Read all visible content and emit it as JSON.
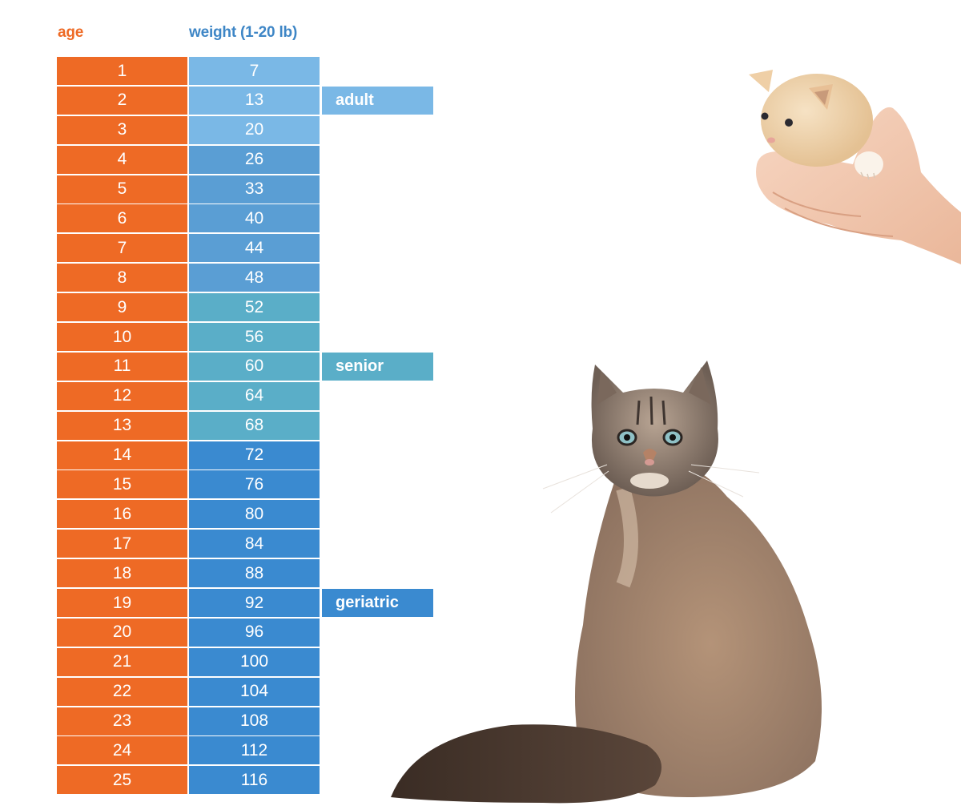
{
  "headers": {
    "age": "age",
    "weight": "weight (1-20 lb)"
  },
  "colors": {
    "age": "#ee6a25",
    "header_weight": "#3e86c6",
    "kitten": "#7ab8e6",
    "adult": "#5a9ed4",
    "senior": "#5aaec8",
    "geriatric": "#3a8ad0"
  },
  "stages": [
    {
      "label": "adult",
      "row": 2,
      "group": "kitten"
    },
    {
      "label": "senior",
      "row": 11,
      "group": "senior"
    },
    {
      "label": "geriatric",
      "row": 19,
      "group": "geriatric"
    }
  ],
  "rows": [
    {
      "age": "1",
      "weight": "7",
      "group": "kitten"
    },
    {
      "age": "2",
      "weight": "13",
      "group": "kitten"
    },
    {
      "age": "3",
      "weight": "20",
      "group": "kitten"
    },
    {
      "age": "4",
      "weight": "26",
      "group": "adult"
    },
    {
      "age": "5",
      "weight": "33",
      "group": "adult"
    },
    {
      "age": "6",
      "weight": "40",
      "group": "adult"
    },
    {
      "age": "7",
      "weight": "44",
      "group": "adult"
    },
    {
      "age": "8",
      "weight": "48",
      "group": "adult"
    },
    {
      "age": "9",
      "weight": "52",
      "group": "senior"
    },
    {
      "age": "10",
      "weight": "56",
      "group": "senior"
    },
    {
      "age": "11",
      "weight": "60",
      "group": "senior"
    },
    {
      "age": "12",
      "weight": "64",
      "group": "senior"
    },
    {
      "age": "13",
      "weight": "68",
      "group": "senior"
    },
    {
      "age": "14",
      "weight": "72",
      "group": "geriatric"
    },
    {
      "age": "15",
      "weight": "76",
      "group": "geriatric"
    },
    {
      "age": "16",
      "weight": "80",
      "group": "geriatric"
    },
    {
      "age": "17",
      "weight": "84",
      "group": "geriatric"
    },
    {
      "age": "18",
      "weight": "88",
      "group": "geriatric"
    },
    {
      "age": "19",
      "weight": "92",
      "group": "geriatric"
    },
    {
      "age": "20",
      "weight": "96",
      "group": "geriatric"
    },
    {
      "age": "21",
      "weight": "100",
      "group": "geriatric"
    },
    {
      "age": "22",
      "weight": "104",
      "group": "geriatric"
    },
    {
      "age": "23",
      "weight": "108",
      "group": "geriatric"
    },
    {
      "age": "24",
      "weight": "112",
      "group": "geriatric"
    },
    {
      "age": "25",
      "weight": "116",
      "group": "geriatric"
    }
  ],
  "images": [
    {
      "name": "kitten-in-hand-photo"
    },
    {
      "name": "adult-cat-photo"
    }
  ],
  "chart_data": {
    "type": "table",
    "title": "",
    "columns": [
      "age",
      "weight (1-20 lb)"
    ],
    "categories": [
      "1",
      "2",
      "3",
      "4",
      "5",
      "6",
      "7",
      "8",
      "9",
      "10",
      "11",
      "12",
      "13",
      "14",
      "15",
      "16",
      "17",
      "18",
      "19",
      "20",
      "21",
      "22",
      "23",
      "24",
      "25"
    ],
    "series": [
      {
        "name": "weight (1-20 lb)",
        "values": [
          7,
          13,
          20,
          26,
          33,
          40,
          44,
          48,
          52,
          56,
          60,
          64,
          68,
          72,
          76,
          80,
          84,
          88,
          92,
          96,
          100,
          104,
          108,
          112,
          116
        ]
      }
    ],
    "annotations": [
      {
        "text": "adult",
        "at_age": 2
      },
      {
        "text": "senior",
        "at_age": 11
      },
      {
        "text": "geriatric",
        "at_age": 19
      }
    ],
    "groups": [
      {
        "name": "kitten",
        "ages": [
          1,
          3
        ],
        "color": "#7ab8e6"
      },
      {
        "name": "adult",
        "ages": [
          4,
          8
        ],
        "color": "#5a9ed4"
      },
      {
        "name": "senior",
        "ages": [
          9,
          13
        ],
        "color": "#5aaec8"
      },
      {
        "name": "geriatric",
        "ages": [
          14,
          25
        ],
        "color": "#3a8ad0"
      }
    ]
  }
}
